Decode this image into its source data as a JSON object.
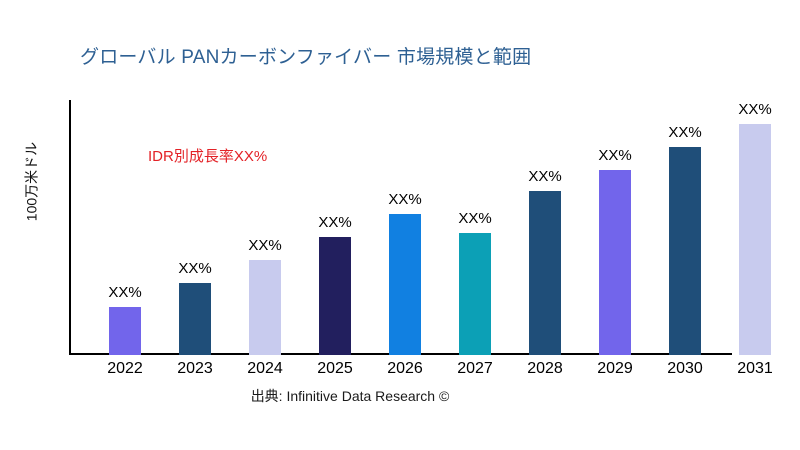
{
  "page": {
    "title": "グローバル PANカーボンファイバー 市場規模と範囲",
    "annotation": "IDR別成長率XX%",
    "y_axis_label": "100万米ドル",
    "source": "出典: Infinitive Data Research ©"
  },
  "colors": {
    "title_text": "#2E6093",
    "annotation_text": "#E32227",
    "axis": "#000000",
    "purple": "#7265EB",
    "dark_steel_blue": "#1F4E79",
    "lavender": "#C8CBEE",
    "dark_navy": "#221F5E",
    "bright_blue": "#1180E1",
    "teal": "#0CA0B6"
  },
  "chart_data": {
    "type": "bar",
    "title": "グローバル PANカーボンファイバー 市場規模と範囲",
    "xlabel": "",
    "ylabel": "100万米ドル",
    "annotation": "IDR別成長率XX%",
    "legend": "none",
    "grid": false,
    "categories": [
      "2022",
      "2023",
      "2024",
      "2025",
      "2026",
      "2027",
      "2028",
      "2029",
      "2030",
      "2031"
    ],
    "bar_labels": [
      "XX%",
      "XX%",
      "XX%",
      "XX%",
      "XX%",
      "XX%",
      "XX%",
      "XX%",
      "XX%",
      "XX%"
    ],
    "values_relative_height_pct_of_max": [
      21,
      31,
      41,
      51,
      61,
      53,
      71,
      80,
      90,
      100
    ],
    "bar_colors": [
      "#7265EB",
      "#1F4E79",
      "#C8CBEE",
      "#221F5E",
      "#1180E1",
      "#0CA0B6",
      "#1F4E79",
      "#7265EB",
      "#1F4E79",
      "#C8CBEE"
    ],
    "source_caption": "出典: Infinitive Data Research ©"
  }
}
